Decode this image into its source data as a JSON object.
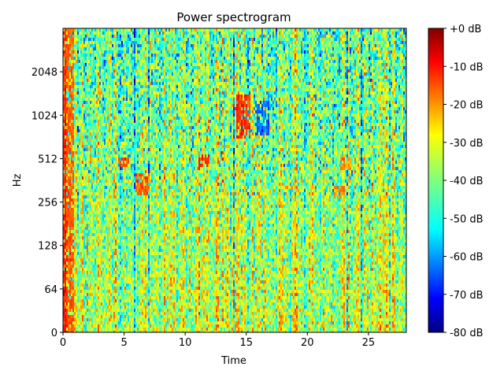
{
  "chart_data": {
    "type": "heatmap",
    "title": "Power spectrogram",
    "xlabel": "Time",
    "ylabel": "Hz",
    "xlim": [
      0,
      28.1
    ],
    "x_ticks": [
      0,
      5,
      10,
      15,
      20,
      25
    ],
    "y_scale": "log2 (symlog)",
    "y_ticks": [
      "0",
      "64",
      "128",
      "256",
      "512",
      "1024",
      "2048"
    ],
    "colormap": "jet",
    "colorbar": {
      "range_db": [
        -80,
        0
      ],
      "ticks": [
        "+0 dB",
        "-10 dB",
        "-20 dB",
        "-30 dB",
        "-40 dB",
        "-50 dB",
        "-60 dB",
        "-70 dB",
        "-80 dB"
      ]
    },
    "value_range_db": [
      -80,
      0
    ],
    "features": [
      {
        "time": 0.3,
        "freq_range": [
          0,
          4096
        ],
        "db": -10
      },
      {
        "time": 5,
        "freq": 480,
        "db": -5
      },
      {
        "time": 6.5,
        "freq_range": [
          290,
          400
        ],
        "db": -10
      },
      {
        "time": 11.5,
        "freq": 490,
        "db": -5
      },
      {
        "time": 14.8,
        "freq_range": [
          700,
          1400
        ],
        "db": -5
      },
      {
        "time": 16.3,
        "freq_range": [
          750,
          1300
        ],
        "db": -70
      },
      {
        "time": 22.6,
        "freq": 300,
        "db": -15
      },
      {
        "time": 23.2,
        "freq": 470,
        "db": -15
      }
    ]
  }
}
